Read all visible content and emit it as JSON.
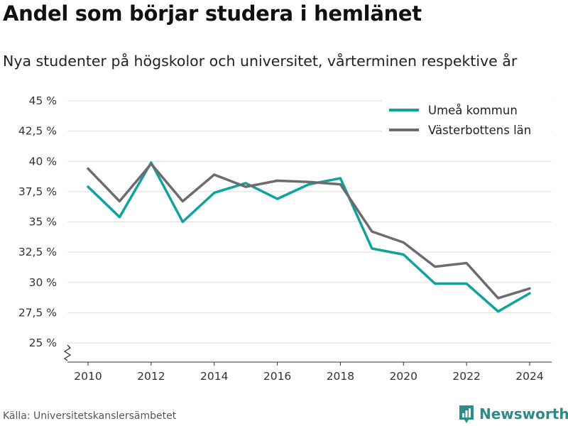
{
  "header": {
    "title": "Andel som börjar studera i hemlänet",
    "subtitle": "Nya studenter på högskolor och universitet, vårterminen respektive år"
  },
  "footer": {
    "source": "Källa: Universitetskanslersämbetet",
    "brand": "Newsworthy",
    "brand_icon": "bar-chart-logo-icon"
  },
  "colors": {
    "umea": "#0fa39b",
    "vasterbotten": "#6d6b71",
    "grid": "#dddddd",
    "brand": "#2a8c88"
  },
  "chart_data": {
    "type": "line",
    "x": [
      2010,
      2011,
      2012,
      2013,
      2014,
      2015,
      2016,
      2017,
      2018,
      2019,
      2020,
      2021,
      2022,
      2023,
      2024
    ],
    "series": [
      {
        "name": "Umeå kommun",
        "values": [
          37.9,
          35.4,
          39.9,
          35.0,
          37.4,
          38.2,
          36.9,
          38.1,
          38.6,
          32.8,
          32.3,
          29.9,
          29.9,
          27.6,
          29.1
        ]
      },
      {
        "name": "Västerbottens län",
        "values": [
          39.4,
          36.7,
          39.8,
          36.7,
          38.9,
          37.9,
          38.4,
          38.3,
          38.1,
          34.2,
          33.3,
          31.3,
          31.6,
          28.7,
          29.5
        ]
      }
    ],
    "x_ticks": [
      "2010",
      "2012",
      "2014",
      "2016",
      "2018",
      "2020",
      "2022",
      "2024"
    ],
    "y_ticks": [
      "25 %",
      "27,5 %",
      "30 %",
      "32,5 %",
      "35 %",
      "37,5 %",
      "40 %",
      "42,5 %",
      "45 %"
    ],
    "ylim": [
      25,
      45
    ],
    "xlim": [
      2010,
      2024
    ],
    "y_axis_broken": true,
    "grid": true,
    "legend_position": "top-right"
  }
}
